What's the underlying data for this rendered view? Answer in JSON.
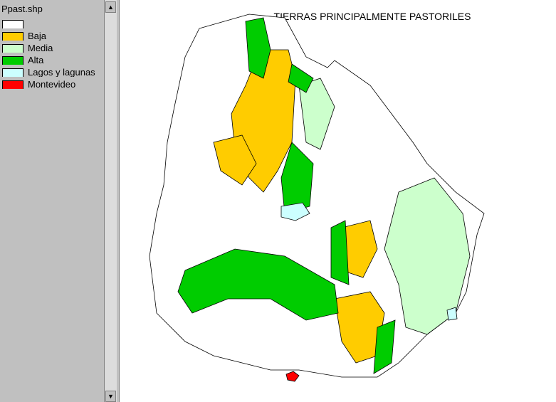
{
  "legend": {
    "title": "Ppast.shp",
    "items": [
      {
        "color": "#ffffff"
      },
      {
        "label": "Baja",
        "color": "#ffcc00"
      },
      {
        "label": "Media",
        "color": "#ccffcc"
      },
      {
        "label": "Alta",
        "color": "#00cc00"
      },
      {
        "label": "Lagos y lagunas",
        "color": "#ccffff"
      },
      {
        "label": "Montevideo",
        "color": "#ff0000"
      }
    ]
  },
  "map": {
    "title": "TIERRAS PRINCIPALMENTE PASTORILES"
  }
}
